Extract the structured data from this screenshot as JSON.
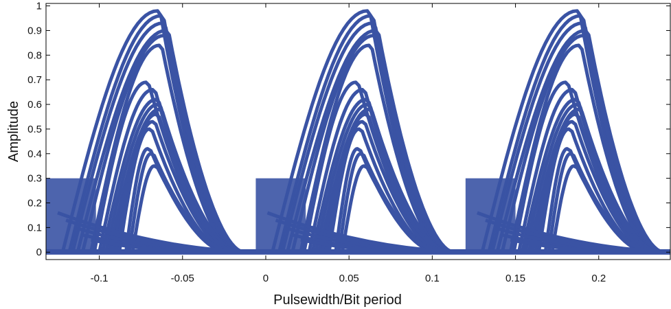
{
  "chart_data": {
    "type": "line",
    "title": "",
    "xlabel": "Pulsewidth/Bit period",
    "ylabel": "Amplitude",
    "xlim": [
      -0.132,
      0.243
    ],
    "ylim": [
      -0.03,
      1.01
    ],
    "xticks": [
      {
        "value": -0.1,
        "label": "-0.1"
      },
      {
        "value": -0.05,
        "label": "-0.05"
      },
      {
        "value": 0,
        "label": "0"
      },
      {
        "value": 0.05,
        "label": "0.05"
      },
      {
        "value": 0.1,
        "label": "0.1"
      },
      {
        "value": 0.15,
        "label": "0.15"
      },
      {
        "value": 0.2,
        "label": "0.2"
      }
    ],
    "yticks": [
      {
        "value": 0,
        "label": "0"
      },
      {
        "value": 0.1,
        "label": "0.1"
      },
      {
        "value": 0.2,
        "label": "0.2"
      },
      {
        "value": 0.3,
        "label": "0.3"
      },
      {
        "value": 0.4,
        "label": "0.4"
      },
      {
        "value": 0.5,
        "label": "0.5"
      },
      {
        "value": 0.6,
        "label": "0.6"
      },
      {
        "value": 0.7,
        "label": "0.7"
      },
      {
        "value": 0.8,
        "label": "0.8"
      },
      {
        "value": 0.9,
        "label": "0.9"
      },
      {
        "value": 1,
        "label": "1"
      }
    ],
    "grid": false,
    "color": "#3a53a4",
    "pulse_period": 0.126,
    "pulse_centers": [
      -0.07,
      0.056,
      0.182
    ],
    "pulse_traces": [
      {
        "start": -0.122,
        "peak_x": -0.065,
        "peak": 0.98,
        "fall_end": -0.02
      },
      {
        "start": -0.118,
        "peak_x": -0.063,
        "peak": 0.96,
        "fall_end": -0.018
      },
      {
        "start": -0.116,
        "peak_x": -0.062,
        "peak": 0.93,
        "fall_end": -0.017
      },
      {
        "start": -0.113,
        "peak_x": -0.06,
        "peak": 0.9,
        "fall_end": -0.015
      },
      {
        "start": -0.11,
        "peak_x": -0.061,
        "peak": 0.88,
        "fall_end": -0.016
      },
      {
        "start": -0.105,
        "peak_x": -0.064,
        "peak": 0.84,
        "fall_end": -0.02
      },
      {
        "start": -0.103,
        "peak_x": -0.072,
        "peak": 0.69,
        "fall_end": -0.022
      },
      {
        "start": -0.1,
        "peak_x": -0.068,
        "peak": 0.66,
        "fall_end": -0.02
      },
      {
        "start": -0.098,
        "peak_x": -0.066,
        "peak": 0.62,
        "fall_end": -0.019
      },
      {
        "start": -0.096,
        "peak_x": -0.065,
        "peak": 0.6,
        "fall_end": -0.018
      },
      {
        "start": -0.094,
        "peak_x": -0.064,
        "peak": 0.58,
        "fall_end": -0.018
      },
      {
        "start": -0.092,
        "peak_x": -0.066,
        "peak": 0.56,
        "fall_end": -0.02
      },
      {
        "start": -0.09,
        "peak_x": -0.068,
        "peak": 0.53,
        "fall_end": -0.022
      },
      {
        "start": -0.088,
        "peak_x": -0.07,
        "peak": 0.5,
        "fall_end": -0.024
      },
      {
        "start": -0.084,
        "peak_x": -0.071,
        "peak": 0.42,
        "fall_end": -0.025
      },
      {
        "start": -0.082,
        "peak_x": -0.069,
        "peak": 0.4,
        "fall_end": -0.023
      },
      {
        "start": -0.08,
        "peak_x": -0.067,
        "peak": 0.35,
        "fall_end": -0.022
      }
    ],
    "secondary_traces": [
      {
        "start_x": -0.125,
        "start_y": 0.16,
        "end_x": -0.03,
        "end_y": 0.01
      },
      {
        "start_x": -0.12,
        "start_y": 0.13,
        "end_x": -0.035,
        "end_y": 0.01
      },
      {
        "start_x": -0.115,
        "start_y": 0.1,
        "end_x": -0.04,
        "end_y": 0.005
      },
      {
        "start_x": -0.11,
        "start_y": 0.07,
        "end_x": -0.045,
        "end_y": 0.003
      },
      {
        "start_x": -0.105,
        "start_y": 0.05,
        "end_x": -0.05,
        "end_y": 0.003
      }
    ]
  }
}
